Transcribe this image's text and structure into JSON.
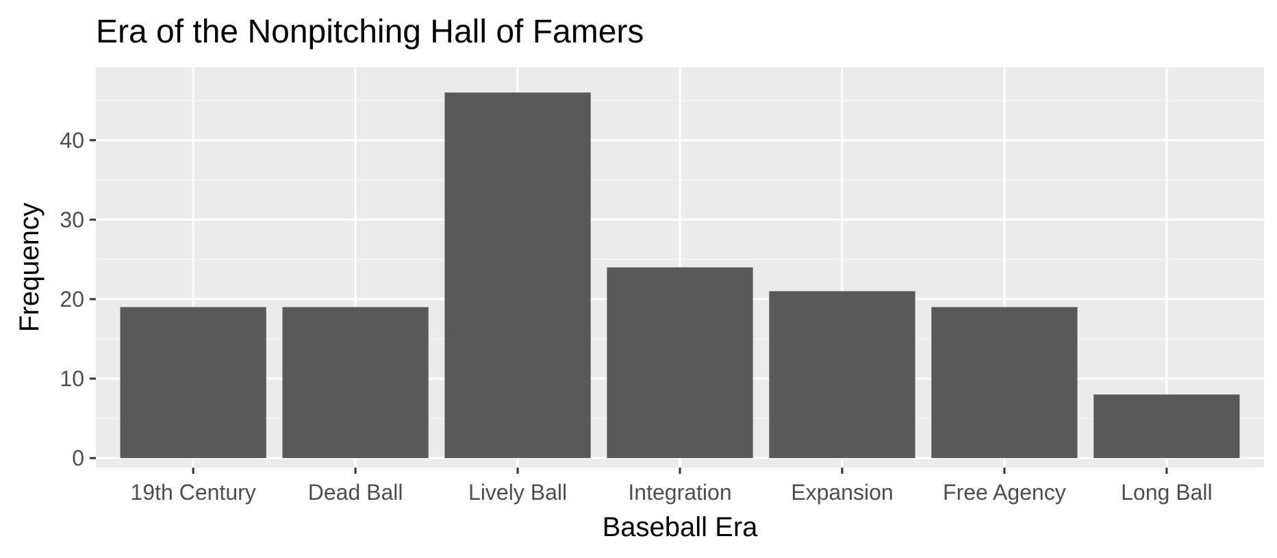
{
  "chart_data": {
    "type": "bar",
    "title": "Era of the Nonpitching Hall of Famers",
    "xlabel": "Baseball Era",
    "ylabel": "Frequency",
    "categories": [
      "19th Century",
      "Dead Ball",
      "Lively Ball",
      "Integration",
      "Expansion",
      "Free Agency",
      "Long Ball"
    ],
    "values": [
      19,
      19,
      46,
      24,
      21,
      19,
      8
    ],
    "ylim": [
      -1.2,
      49.2
    ],
    "yticks": [
      0,
      10,
      20,
      30,
      40
    ],
    "grid": true,
    "legend": "none"
  },
  "colors": {
    "bar": "#595959",
    "panel_background": "#ebebeb",
    "grid_major": "#ffffff",
    "grid_minor": "#f5f5f5",
    "tick_mark": "#333333",
    "tick_text": "#4d4d4d",
    "text": "#000000"
  }
}
